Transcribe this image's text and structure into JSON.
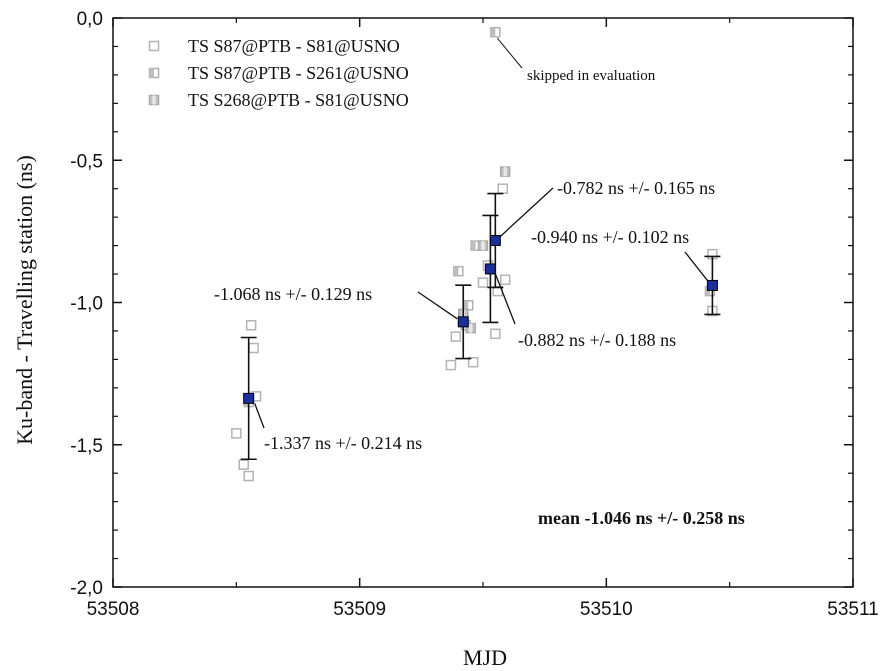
{
  "chart_data": {
    "type": "scatter",
    "xlabel": "MJD",
    "ylabel": "Ku-band - Travelling station (ns)",
    "xlim": [
      53508,
      53511
    ],
    "ylim": [
      -2.0,
      0.0
    ],
    "x_ticks": [
      53508,
      53509,
      53510,
      53511
    ],
    "x_tick_labels": [
      "53508",
      "53509",
      "53510",
      "53511"
    ],
    "y_ticks": [
      0.0,
      -0.5,
      -1.0,
      -1.5,
      -2.0
    ],
    "y_tick_labels": [
      "0,0",
      "-0,5",
      "-1,0",
      "-1,5",
      "-2,0"
    ],
    "legend": {
      "placement": "top-left",
      "entries": [
        {
          "label": "TS S87@PTB - S81@USNO",
          "marker": "open-square"
        },
        {
          "label": "TS S87@PTB - S261@USNO",
          "marker": "half-square"
        },
        {
          "label": "TS S268@PTB - S81@USNO",
          "marker": "center-square"
        }
      ]
    },
    "series": [
      {
        "name": "TS S87@PTB - S81@USNO",
        "marker": "open-square",
        "points": [
          {
            "x": 53508.5,
            "y": -1.46
          },
          {
            "x": 53508.53,
            "y": -1.57
          },
          {
            "x": 53508.55,
            "y": -1.61
          },
          {
            "x": 53508.56,
            "y": -1.08
          },
          {
            "x": 53508.57,
            "y": -1.16
          },
          {
            "x": 53508.58,
            "y": -1.33
          },
          {
            "x": 53509.37,
            "y": -1.22
          },
          {
            "x": 53509.39,
            "y": -1.12
          },
          {
            "x": 53509.43,
            "y": -1.08
          },
          {
            "x": 53509.46,
            "y": -1.21
          },
          {
            "x": 53509.5,
            "y": -0.93
          },
          {
            "x": 53509.52,
            "y": -0.87
          },
          {
            "x": 53509.55,
            "y": -1.11
          },
          {
            "x": 53509.56,
            "y": -0.96
          },
          {
            "x": 53509.58,
            "y": -0.6
          },
          {
            "x": 53509.59,
            "y": -0.92
          },
          {
            "x": 53510.43,
            "y": -0.83
          },
          {
            "x": 53510.43,
            "y": -1.03
          }
        ]
      },
      {
        "name": "TS S87@PTB - S261@USNO",
        "marker": "half-square",
        "points": [
          {
            "x": 53508.55,
            "y": -1.35
          },
          {
            "x": 53509.4,
            "y": -0.89
          },
          {
            "x": 53509.44,
            "y": -1.01
          },
          {
            "x": 53509.47,
            "y": -0.8
          },
          {
            "x": 53509.55,
            "y": -0.05
          },
          {
            "x": 53510.42,
            "y": -0.96
          }
        ]
      },
      {
        "name": "TS S268@PTB - S81@USNO",
        "marker": "center-square",
        "points": [
          {
            "x": 53509.42,
            "y": -1.04
          },
          {
            "x": 53509.5,
            "y": -0.8
          },
          {
            "x": 53509.59,
            "y": -0.54
          },
          {
            "x": 53509.45,
            "y": -1.09
          }
        ]
      }
    ],
    "means": [
      {
        "x": 53508.55,
        "y": -1.337,
        "err": 0.214,
        "label": "-1.337 ns +/- 0.214 ns"
      },
      {
        "x": 53509.42,
        "y": -1.068,
        "err": 0.129,
        "label": "-1.068 ns +/- 0.129 ns"
      },
      {
        "x": 53509.53,
        "y": -0.882,
        "err": 0.188,
        "label": "-0.882 ns +/- 0.188 ns"
      },
      {
        "x": 53509.55,
        "y": -0.782,
        "err": 0.165,
        "label": "-0.782 ns +/- 0.165 ns"
      },
      {
        "x": 53510.43,
        "y": -0.94,
        "err": 0.102,
        "label": "-0.940 ns +/- 0.102 ns"
      }
    ],
    "annotations": {
      "skipped": "skipped in evaluation",
      "mean": "mean -1.046 ns +/- 0.258 ns"
    },
    "colors": {
      "mean_marker": "#1a2f9c",
      "data_marker": "#b8b8b8",
      "axis": "#111111"
    }
  }
}
